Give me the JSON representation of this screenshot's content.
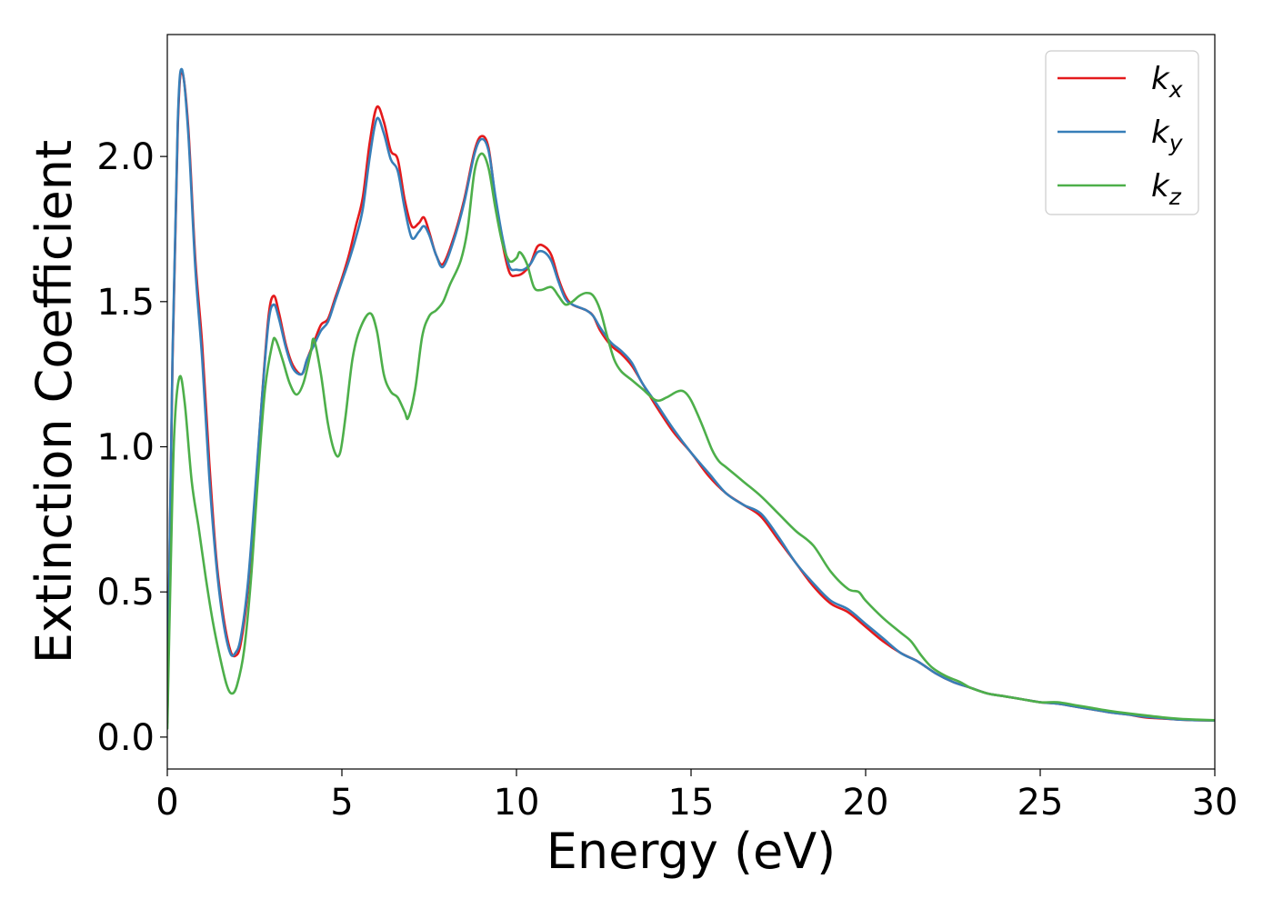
{
  "chart_data": {
    "type": "line",
    "title": "",
    "xlabel": "Energy (eV)",
    "ylabel": "Extinction Coefficient",
    "xlim": [
      0,
      30
    ],
    "ylim": [
      -0.11,
      2.42
    ],
    "xticks": [
      0,
      5,
      10,
      15,
      20,
      25,
      30
    ],
    "xtick_labels": [
      "0",
      "5",
      "10",
      "15",
      "20",
      "25",
      "30"
    ],
    "yticks": [
      0.0,
      0.5,
      1.0,
      1.5,
      2.0
    ],
    "ytick_labels": [
      "0.0",
      "0.5",
      "1.0",
      "1.5",
      "2.0"
    ],
    "grid": false,
    "legend_position": "top-right",
    "series": [
      {
        "name": "k",
        "subscript": "x",
        "color": "#e41a1c",
        "points": [
          [
            0,
            0.05
          ],
          [
            0.15,
            1.3
          ],
          [
            0.3,
            2.1
          ],
          [
            0.42,
            2.29
          ],
          [
            0.6,
            2.1
          ],
          [
            0.8,
            1.65
          ],
          [
            1.0,
            1.35
          ],
          [
            1.2,
            0.95
          ],
          [
            1.4,
            0.62
          ],
          [
            1.6,
            0.42
          ],
          [
            1.8,
            0.3
          ],
          [
            1.95,
            0.28
          ],
          [
            2.1,
            0.32
          ],
          [
            2.3,
            0.5
          ],
          [
            2.5,
            0.8
          ],
          [
            2.7,
            1.15
          ],
          [
            2.9,
            1.45
          ],
          [
            3.05,
            1.52
          ],
          [
            3.2,
            1.46
          ],
          [
            3.4,
            1.35
          ],
          [
            3.6,
            1.28
          ],
          [
            3.85,
            1.25
          ],
          [
            4.0,
            1.3
          ],
          [
            4.2,
            1.36
          ],
          [
            4.4,
            1.42
          ],
          [
            4.6,
            1.44
          ],
          [
            4.8,
            1.51
          ],
          [
            5.0,
            1.58
          ],
          [
            5.2,
            1.66
          ],
          [
            5.4,
            1.76
          ],
          [
            5.6,
            1.86
          ],
          [
            5.8,
            2.05
          ],
          [
            6.0,
            2.17
          ],
          [
            6.2,
            2.12
          ],
          [
            6.4,
            2.02
          ],
          [
            6.6,
            1.99
          ],
          [
            6.8,
            1.85
          ],
          [
            7.0,
            1.76
          ],
          [
            7.2,
            1.77
          ],
          [
            7.35,
            1.79
          ],
          [
            7.5,
            1.74
          ],
          [
            7.7,
            1.66
          ],
          [
            7.9,
            1.63
          ],
          [
            8.2,
            1.72
          ],
          [
            8.5,
            1.85
          ],
          [
            8.8,
            2.02
          ],
          [
            9.0,
            2.07
          ],
          [
            9.2,
            2.03
          ],
          [
            9.4,
            1.85
          ],
          [
            9.6,
            1.7
          ],
          [
            9.8,
            1.6
          ],
          [
            10.0,
            1.59
          ],
          [
            10.2,
            1.6
          ],
          [
            10.4,
            1.63
          ],
          [
            10.6,
            1.69
          ],
          [
            10.8,
            1.69
          ],
          [
            11.0,
            1.66
          ],
          [
            11.2,
            1.58
          ],
          [
            11.4,
            1.52
          ],
          [
            11.6,
            1.49
          ],
          [
            12.0,
            1.47
          ],
          [
            12.2,
            1.45
          ],
          [
            12.4,
            1.4
          ],
          [
            12.7,
            1.35
          ],
          [
            13.0,
            1.32
          ],
          [
            13.3,
            1.28
          ],
          [
            13.6,
            1.22
          ],
          [
            14.0,
            1.14
          ],
          [
            14.5,
            1.05
          ],
          [
            15.0,
            0.98
          ],
          [
            15.5,
            0.9
          ],
          [
            16.0,
            0.84
          ],
          [
            16.5,
            0.8
          ],
          [
            17.0,
            0.76
          ],
          [
            17.5,
            0.68
          ],
          [
            18.0,
            0.6
          ],
          [
            18.5,
            0.52
          ],
          [
            19.0,
            0.46
          ],
          [
            19.5,
            0.43
          ],
          [
            20.0,
            0.38
          ],
          [
            20.5,
            0.33
          ],
          [
            21.0,
            0.29
          ],
          [
            21.5,
            0.26
          ],
          [
            22.0,
            0.22
          ],
          [
            22.5,
            0.19
          ],
          [
            23.0,
            0.17
          ],
          [
            23.5,
            0.15
          ],
          [
            24.0,
            0.14
          ],
          [
            24.5,
            0.13
          ],
          [
            25.0,
            0.12
          ],
          [
            25.5,
            0.115
          ],
          [
            26.0,
            0.105
          ],
          [
            26.5,
            0.095
          ],
          [
            27.0,
            0.085
          ],
          [
            27.5,
            0.078
          ],
          [
            28.0,
            0.068
          ],
          [
            28.5,
            0.064
          ],
          [
            29.0,
            0.06
          ],
          [
            29.5,
            0.058
          ],
          [
            30.0,
            0.057
          ]
        ]
      },
      {
        "name": "k",
        "subscript": "y",
        "color": "#377eb8",
        "points": [
          [
            0,
            0.05
          ],
          [
            0.15,
            1.32
          ],
          [
            0.3,
            2.12
          ],
          [
            0.42,
            2.3
          ],
          [
            0.6,
            2.08
          ],
          [
            0.8,
            1.62
          ],
          [
            1.0,
            1.3
          ],
          [
            1.2,
            0.9
          ],
          [
            1.4,
            0.6
          ],
          [
            1.6,
            0.4
          ],
          [
            1.8,
            0.29
          ],
          [
            1.95,
            0.29
          ],
          [
            2.1,
            0.34
          ],
          [
            2.3,
            0.52
          ],
          [
            2.5,
            0.82
          ],
          [
            2.7,
            1.15
          ],
          [
            2.9,
            1.43
          ],
          [
            3.05,
            1.49
          ],
          [
            3.2,
            1.44
          ],
          [
            3.4,
            1.34
          ],
          [
            3.6,
            1.27
          ],
          [
            3.85,
            1.25
          ],
          [
            4.0,
            1.3
          ],
          [
            4.2,
            1.35
          ],
          [
            4.4,
            1.4
          ],
          [
            4.6,
            1.43
          ],
          [
            4.8,
            1.5
          ],
          [
            5.0,
            1.57
          ],
          [
            5.2,
            1.64
          ],
          [
            5.4,
            1.72
          ],
          [
            5.6,
            1.82
          ],
          [
            5.8,
            2.0
          ],
          [
            6.0,
            2.13
          ],
          [
            6.2,
            2.08
          ],
          [
            6.4,
            1.99
          ],
          [
            6.6,
            1.95
          ],
          [
            6.8,
            1.82
          ],
          [
            7.0,
            1.72
          ],
          [
            7.2,
            1.74
          ],
          [
            7.35,
            1.76
          ],
          [
            7.5,
            1.73
          ],
          [
            7.7,
            1.66
          ],
          [
            7.9,
            1.62
          ],
          [
            8.2,
            1.71
          ],
          [
            8.5,
            1.84
          ],
          [
            8.8,
            2.01
          ],
          [
            9.0,
            2.06
          ],
          [
            9.2,
            2.02
          ],
          [
            9.4,
            1.86
          ],
          [
            9.6,
            1.72
          ],
          [
            9.8,
            1.62
          ],
          [
            10.0,
            1.61
          ],
          [
            10.2,
            1.61
          ],
          [
            10.4,
            1.63
          ],
          [
            10.6,
            1.67
          ],
          [
            10.8,
            1.67
          ],
          [
            11.0,
            1.64
          ],
          [
            11.2,
            1.57
          ],
          [
            11.4,
            1.51
          ],
          [
            11.6,
            1.49
          ],
          [
            12.0,
            1.47
          ],
          [
            12.2,
            1.45
          ],
          [
            12.4,
            1.41
          ],
          [
            12.7,
            1.36
          ],
          [
            13.0,
            1.33
          ],
          [
            13.3,
            1.29
          ],
          [
            13.6,
            1.22
          ],
          [
            14.0,
            1.15
          ],
          [
            14.5,
            1.06
          ],
          [
            15.0,
            0.98
          ],
          [
            15.5,
            0.91
          ],
          [
            16.0,
            0.84
          ],
          [
            16.5,
            0.8
          ],
          [
            17.0,
            0.77
          ],
          [
            17.5,
            0.69
          ],
          [
            18.0,
            0.6
          ],
          [
            18.5,
            0.53
          ],
          [
            19.0,
            0.47
          ],
          [
            19.5,
            0.44
          ],
          [
            20.0,
            0.39
          ],
          [
            20.5,
            0.34
          ],
          [
            21.0,
            0.29
          ],
          [
            21.5,
            0.26
          ],
          [
            22.0,
            0.22
          ],
          [
            22.5,
            0.19
          ],
          [
            23.0,
            0.17
          ],
          [
            23.5,
            0.15
          ],
          [
            24.0,
            0.14
          ],
          [
            24.5,
            0.13
          ],
          [
            25.0,
            0.12
          ],
          [
            25.5,
            0.115
          ],
          [
            26.0,
            0.105
          ],
          [
            26.5,
            0.095
          ],
          [
            27.0,
            0.085
          ],
          [
            27.5,
            0.078
          ],
          [
            28.0,
            0.07
          ],
          [
            28.5,
            0.065
          ],
          [
            29.0,
            0.06
          ],
          [
            29.5,
            0.058
          ],
          [
            30.0,
            0.057
          ]
        ]
      },
      {
        "name": "k",
        "subscript": "z",
        "color": "#4daf4a",
        "points": [
          [
            0,
            0.03
          ],
          [
            0.1,
            0.6
          ],
          [
            0.2,
            1.05
          ],
          [
            0.35,
            1.24
          ],
          [
            0.5,
            1.15
          ],
          [
            0.7,
            0.88
          ],
          [
            0.9,
            0.72
          ],
          [
            1.1,
            0.55
          ],
          [
            1.3,
            0.4
          ],
          [
            1.5,
            0.28
          ],
          [
            1.7,
            0.18
          ],
          [
            1.85,
            0.15
          ],
          [
            2.0,
            0.18
          ],
          [
            2.2,
            0.3
          ],
          [
            2.4,
            0.55
          ],
          [
            2.6,
            0.9
          ],
          [
            2.8,
            1.2
          ],
          [
            3.0,
            1.35
          ],
          [
            3.1,
            1.37
          ],
          [
            3.3,
            1.3
          ],
          [
            3.5,
            1.22
          ],
          [
            3.7,
            1.18
          ],
          [
            3.9,
            1.22
          ],
          [
            4.1,
            1.32
          ],
          [
            4.2,
            1.37
          ],
          [
            4.4,
            1.25
          ],
          [
            4.6,
            1.08
          ],
          [
            4.8,
            0.98
          ],
          [
            4.95,
            0.98
          ],
          [
            5.1,
            1.1
          ],
          [
            5.3,
            1.3
          ],
          [
            5.5,
            1.4
          ],
          [
            5.8,
            1.46
          ],
          [
            6.0,
            1.4
          ],
          [
            6.2,
            1.25
          ],
          [
            6.4,
            1.19
          ],
          [
            6.6,
            1.17
          ],
          [
            6.8,
            1.12
          ],
          [
            6.9,
            1.1
          ],
          [
            7.1,
            1.2
          ],
          [
            7.3,
            1.38
          ],
          [
            7.5,
            1.45
          ],
          [
            7.7,
            1.47
          ],
          [
            7.9,
            1.5
          ],
          [
            8.1,
            1.56
          ],
          [
            8.4,
            1.64
          ],
          [
            8.6,
            1.75
          ],
          [
            8.8,
            1.95
          ],
          [
            9.0,
            2.01
          ],
          [
            9.2,
            1.96
          ],
          [
            9.4,
            1.82
          ],
          [
            9.6,
            1.7
          ],
          [
            9.8,
            1.64
          ],
          [
            10.0,
            1.65
          ],
          [
            10.1,
            1.67
          ],
          [
            10.3,
            1.63
          ],
          [
            10.5,
            1.55
          ],
          [
            10.7,
            1.54
          ],
          [
            11.0,
            1.55
          ],
          [
            11.2,
            1.52
          ],
          [
            11.4,
            1.49
          ],
          [
            11.6,
            1.5
          ],
          [
            11.8,
            1.52
          ],
          [
            12.0,
            1.53
          ],
          [
            12.2,
            1.52
          ],
          [
            12.4,
            1.47
          ],
          [
            12.6,
            1.38
          ],
          [
            12.8,
            1.3
          ],
          [
            13.0,
            1.26
          ],
          [
            13.3,
            1.23
          ],
          [
            13.6,
            1.2
          ],
          [
            14.0,
            1.16
          ],
          [
            14.3,
            1.17
          ],
          [
            14.6,
            1.19
          ],
          [
            14.8,
            1.19
          ],
          [
            15.0,
            1.16
          ],
          [
            15.3,
            1.08
          ],
          [
            15.6,
            0.99
          ],
          [
            15.8,
            0.95
          ],
          [
            16.0,
            0.93
          ],
          [
            16.5,
            0.88
          ],
          [
            17.0,
            0.83
          ],
          [
            17.5,
            0.77
          ],
          [
            18.0,
            0.71
          ],
          [
            18.5,
            0.66
          ],
          [
            19.0,
            0.57
          ],
          [
            19.5,
            0.51
          ],
          [
            19.8,
            0.5
          ],
          [
            20.0,
            0.47
          ],
          [
            20.5,
            0.41
          ],
          [
            21.0,
            0.36
          ],
          [
            21.3,
            0.33
          ],
          [
            21.6,
            0.28
          ],
          [
            21.9,
            0.24
          ],
          [
            22.3,
            0.21
          ],
          [
            22.7,
            0.19
          ],
          [
            23.0,
            0.17
          ],
          [
            23.5,
            0.15
          ],
          [
            24.0,
            0.14
          ],
          [
            24.5,
            0.13
          ],
          [
            25.0,
            0.12
          ],
          [
            25.5,
            0.12
          ],
          [
            26.0,
            0.11
          ],
          [
            26.5,
            0.1
          ],
          [
            27.0,
            0.09
          ],
          [
            27.5,
            0.082
          ],
          [
            28.0,
            0.075
          ],
          [
            28.5,
            0.068
          ],
          [
            29.0,
            0.063
          ],
          [
            29.5,
            0.06
          ],
          [
            30.0,
            0.058
          ]
        ]
      }
    ]
  }
}
